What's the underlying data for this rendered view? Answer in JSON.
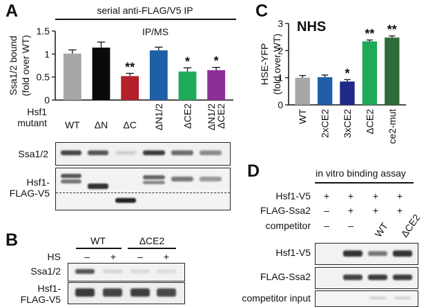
{
  "panels": {
    "A": {
      "letter": "A",
      "header": "serial anti-FLAG/V5 IP",
      "subheader": "IP/MS",
      "row_label_line1": "Hsf1",
      "row_label_line2": "mutant",
      "blot1_label": "Ssa1/2",
      "blot2_label_line1": "Hsf1-",
      "blot2_label_line2": "FLAG-V5",
      "chart_data": {
        "type": "bar",
        "categories": [
          "WT",
          "ΔN",
          "ΔC",
          "ΔN1/2",
          "ΔCE2",
          "ΔN1/2 ΔCE2"
        ],
        "values": [
          1.01,
          1.14,
          0.52,
          1.08,
          0.62,
          0.65
        ],
        "errors": [
          0.08,
          0.12,
          0.06,
          0.07,
          0.08,
          0.06
        ],
        "significance": [
          "",
          "",
          "**",
          "",
          "*",
          "*"
        ],
        "colors": [
          "#a6a6a6",
          "#0a0a0a",
          "#b5212a",
          "#1f5fa8",
          "#1faa5a",
          "#8b2f96"
        ],
        "ylabel": "Ssa1/2 bound (fold over WT)",
        "ylim": [
          0,
          1.5
        ],
        "yticks": [
          "0",
          "0.5",
          "1",
          "1.5"
        ]
      }
    },
    "B": {
      "letter": "B",
      "group1": "WT",
      "group2": "ΔCE2",
      "hs_label": "HS",
      "hs_signs": [
        "–",
        "+",
        "–",
        "+"
      ],
      "blot1_label": "Ssa1/2",
      "blot2_label_line1": "Hsf1-",
      "blot2_label_line2": "FLAG-V5"
    },
    "C": {
      "letter": "C",
      "inset_title": "NHS",
      "chart_data": {
        "type": "bar",
        "categories": [
          "WT",
          "2xCE2",
          "3xCE2",
          "ΔCE2",
          "ce2-mut"
        ],
        "values": [
          1.0,
          1.02,
          0.86,
          2.34,
          2.48
        ],
        "errors": [
          0.08,
          0.08,
          0.07,
          0.05,
          0.06
        ],
        "significance": [
          "",
          "",
          "*",
          "**",
          "**"
        ],
        "colors": [
          "#a6a6a6",
          "#1f5fa8",
          "#1f2a8a",
          "#1faa5a",
          "#2e6b3a"
        ],
        "ylabel": "HSE-YFP (fold over WT)",
        "ylim": [
          0,
          3
        ],
        "yticks": [
          "0",
          "1",
          "2",
          "3"
        ]
      }
    },
    "D": {
      "letter": "D",
      "title": "in vitro binding assay",
      "rows": [
        {
          "label": "Hsf1-V5",
          "signs": [
            "+",
            "+",
            "+",
            "+"
          ]
        },
        {
          "label": "FLAG-Ssa2",
          "signs": [
            "–",
            "+",
            "+",
            "+"
          ]
        },
        {
          "label": "competitor",
          "signs": [
            "–",
            "–"
          ]
        }
      ],
      "competitor_lanes": [
        "WT",
        "ΔCE2"
      ],
      "blot1_label": "Hsf1-V5",
      "blot2_label": "FLAG-Ssa2",
      "blot3_label": "competitor input"
    }
  }
}
